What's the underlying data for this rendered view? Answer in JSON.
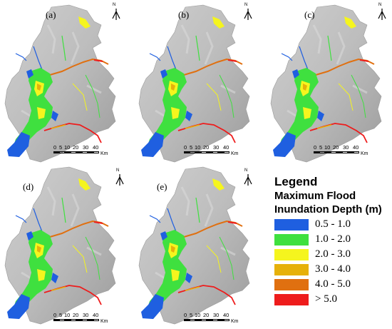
{
  "panels": [
    {
      "label": "(a)"
    },
    {
      "label": "(b)"
    },
    {
      "label": "(c)"
    },
    {
      "label": "(d)"
    },
    {
      "label": "(e)"
    }
  ],
  "scale": {
    "ticks": [
      "0",
      "5",
      "10",
      "20",
      "30",
      "40"
    ],
    "unit": "Km"
  },
  "north_letter": "N",
  "legend": {
    "title": "Legend",
    "subtitle_line1": "Maximum Flood",
    "subtitle_line2": "Inundation Depth (m)",
    "items": [
      {
        "label": "0.5 - 1.0",
        "color": "#1f5fe0"
      },
      {
        "label": "1.0 - 2.0",
        "color": "#3fe03f"
      },
      {
        "label": "2.0 - 3.0",
        "color": "#f5f51e"
      },
      {
        "label": "3.0 - 4.0",
        "color": "#e6b10a"
      },
      {
        "label": "4.0 - 5.0",
        "color": "#e07010"
      },
      {
        "label": "> 5.0",
        "color": "#ee1c1c"
      }
    ]
  },
  "colors": {
    "terrain_light": "#e8e8e8",
    "terrain_dark": "#a9a9a9"
  }
}
